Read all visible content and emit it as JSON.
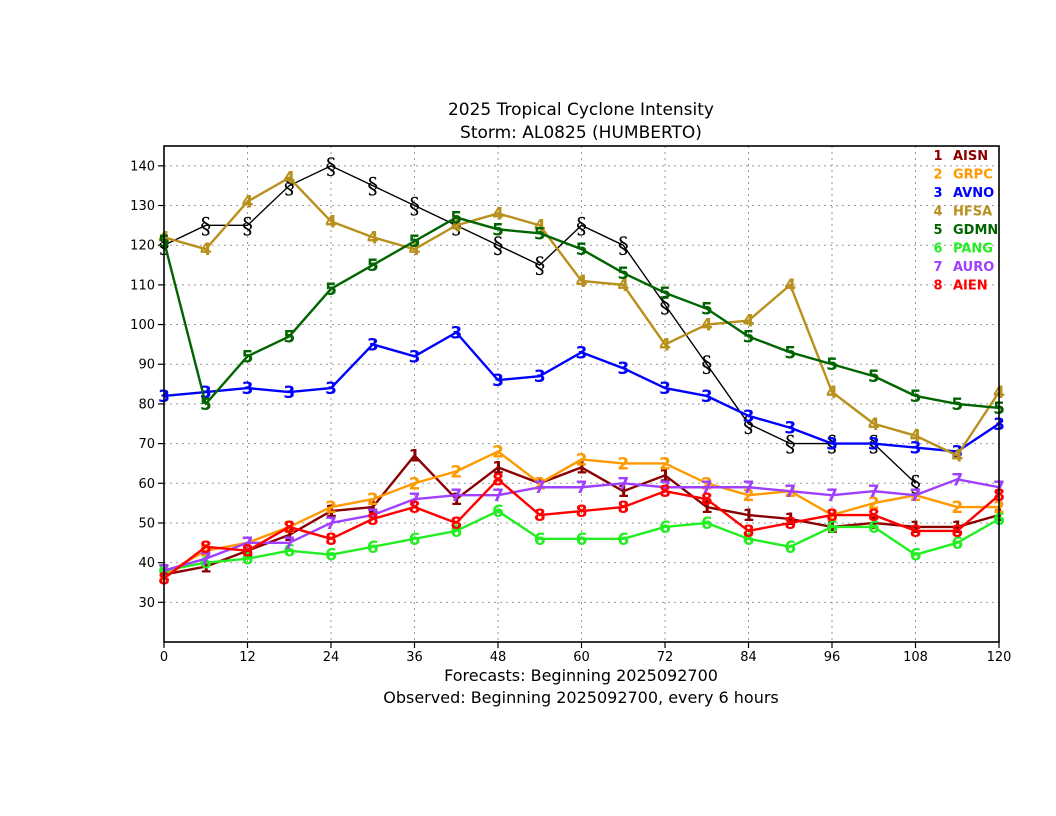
{
  "chart_data": {
    "type": "line",
    "title": "2025 Tropical Cyclone Intensity",
    "subtitle": "Storm: AL0825 (HUMBERTO)",
    "xlabel": "Forecasts: Beginning 2025092700",
    "xlabel2": "Observed: Beginning 2025092700, every 6 hours",
    "ylabel": "",
    "xlim": [
      0,
      120
    ],
    "ylim": [
      20,
      145
    ],
    "x_ticks": [
      0,
      12,
      24,
      36,
      48,
      60,
      72,
      84,
      96,
      108,
      120
    ],
    "y_ticks": [
      30,
      40,
      50,
      60,
      70,
      80,
      90,
      100,
      110,
      120,
      130,
      140
    ],
    "grid": true,
    "legend_position": "top-right",
    "observed": {
      "name": "Observed",
      "symbol": "hurricane",
      "color": "#000000",
      "x": [
        0,
        6,
        12,
        18,
        24,
        30,
        36,
        42,
        48,
        54,
        60,
        66,
        72,
        78,
        84,
        90,
        96,
        102,
        108
      ],
      "values": [
        120,
        125,
        125,
        135,
        140,
        135,
        130,
        125,
        120,
        115,
        125,
        120,
        105,
        90,
        75,
        70,
        70,
        70,
        60
      ]
    },
    "series": [
      {
        "id": "1",
        "name": "AISN",
        "color": "#8b0000",
        "x": [
          0,
          6,
          12,
          18,
          24,
          30,
          36,
          42,
          48,
          54,
          60,
          66,
          72,
          78,
          84,
          90,
          96,
          102,
          108,
          114,
          120
        ],
        "values": [
          37,
          39,
          43,
          47,
          53,
          54,
          67,
          56,
          64,
          60,
          64,
          58,
          62,
          54,
          52,
          51,
          49,
          50,
          49,
          49,
          52
        ]
      },
      {
        "id": "2",
        "name": "GRPC",
        "color": "#ff9900",
        "x": [
          0,
          6,
          12,
          18,
          24,
          30,
          36,
          42,
          48,
          54,
          60,
          66,
          72,
          78,
          84,
          90,
          96,
          102,
          108,
          114,
          120
        ],
        "values": [
          37,
          43,
          45,
          49,
          54,
          56,
          60,
          63,
          68,
          60,
          66,
          65,
          65,
          60,
          57,
          58,
          52,
          55,
          57,
          54,
          54
        ]
      },
      {
        "id": "3",
        "name": "AVNO",
        "color": "#0000ff",
        "x": [
          0,
          6,
          12,
          18,
          24,
          30,
          36,
          42,
          48,
          54,
          60,
          66,
          72,
          78,
          84,
          90,
          96,
          102,
          108,
          114,
          120
        ],
        "values": [
          82,
          83,
          84,
          83,
          84,
          95,
          92,
          98,
          86,
          87,
          93,
          89,
          84,
          82,
          77,
          74,
          70,
          70,
          69,
          68,
          75
        ]
      },
      {
        "id": "4",
        "name": "HFSA",
        "color": "#b8901c",
        "x": [
          0,
          6,
          12,
          18,
          24,
          30,
          36,
          42,
          48,
          54,
          60,
          66,
          72,
          78,
          84,
          90,
          96,
          102,
          108,
          114,
          120
        ],
        "values": [
          122,
          119,
          131,
          137,
          126,
          122,
          119,
          125,
          128,
          125,
          111,
          110,
          95,
          100,
          101,
          110,
          83,
          75,
          72,
          67,
          83
        ]
      },
      {
        "id": "5",
        "name": "GDMN",
        "color": "#006400",
        "x": [
          0,
          6,
          12,
          18,
          24,
          30,
          36,
          42,
          48,
          54,
          60,
          66,
          72,
          78,
          84,
          90,
          96,
          102,
          108,
          114,
          120
        ],
        "values": [
          121,
          80,
          92,
          97,
          109,
          115,
          121,
          127,
          124,
          123,
          119,
          113,
          108,
          104,
          97,
          93,
          90,
          87,
          82,
          80,
          79
        ]
      },
      {
        "id": "6",
        "name": "PANG",
        "color": "#22ee22",
        "x": [
          0,
          6,
          12,
          18,
          24,
          30,
          36,
          42,
          48,
          54,
          60,
          66,
          72,
          78,
          84,
          90,
          96,
          102,
          108,
          114,
          120
        ],
        "values": [
          38,
          40,
          41,
          43,
          42,
          44,
          46,
          48,
          53,
          46,
          46,
          46,
          49,
          50,
          46,
          44,
          49,
          49,
          42,
          45,
          51
        ]
      },
      {
        "id": "7",
        "name": "AURO",
        "color": "#a040ff",
        "x": [
          0,
          6,
          12,
          18,
          24,
          30,
          36,
          42,
          48,
          54,
          60,
          66,
          72,
          78,
          84,
          90,
          96,
          102,
          108,
          114,
          120
        ],
        "values": [
          38,
          41,
          45,
          45,
          50,
          52,
          56,
          57,
          57,
          59,
          59,
          60,
          59,
          59,
          59,
          58,
          57,
          58,
          57,
          61,
          59
        ]
      },
      {
        "id": "8",
        "name": "AIEN",
        "color": "#ff0000",
        "x": [
          0,
          6,
          12,
          18,
          24,
          30,
          36,
          42,
          48,
          54,
          60,
          66,
          72,
          78,
          84,
          90,
          96,
          102,
          108,
          114,
          120
        ],
        "values": [
          36,
          44,
          43,
          49,
          46,
          51,
          54,
          50,
          61,
          52,
          53,
          54,
          58,
          56,
          48,
          50,
          52,
          52,
          48,
          48,
          57
        ]
      }
    ]
  }
}
